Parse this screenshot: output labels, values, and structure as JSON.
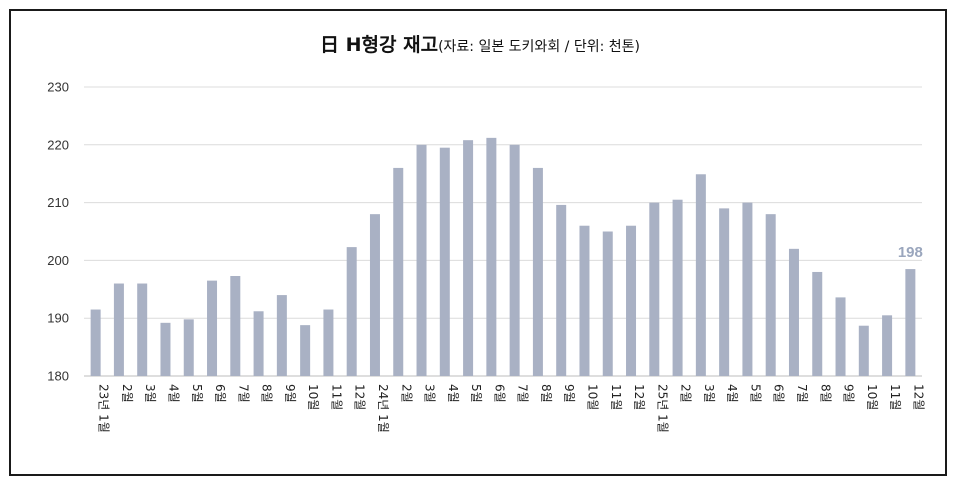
{
  "chart_data": {
    "type": "bar",
    "title": "日 H형강 재고",
    "subtitle": "(자료: 일본 도키와회 / 단위: 천톤)",
    "xlabel": "",
    "ylabel": "",
    "ylim": [
      180,
      230
    ],
    "yticks": [
      "180",
      "190",
      "200",
      "210",
      "220",
      "230"
    ],
    "grid": true,
    "bar_color": "#a9b1c4",
    "categories": [
      "23년 1월",
      "2월",
      "3월",
      "4월",
      "5월",
      "6월",
      "7월",
      "8월",
      "9월",
      "10월",
      "11월",
      "12월",
      "24년 1월",
      "2월",
      "3월",
      "4월",
      "5월",
      "6월",
      "7월",
      "8월",
      "9월",
      "10월",
      "11월",
      "12월",
      "25년 1월",
      "2월",
      "3월",
      "4월",
      "5월",
      "6월",
      "7월",
      "8월",
      "9월",
      "10월",
      "11월",
      "12월"
    ],
    "values": [
      191.5,
      196,
      196,
      189.2,
      189.8,
      196.5,
      197.3,
      191.2,
      194,
      188.8,
      191.5,
      202.3,
      208,
      216,
      220,
      219.5,
      220.8,
      221.2,
      220,
      216,
      209.6,
      206,
      205,
      206,
      210,
      210.5,
      214.9,
      209,
      210,
      208,
      202,
      198,
      193.6,
      188.7,
      190.5,
      198.5
    ],
    "data_labels": [
      {
        "index": 35,
        "text": "198"
      }
    ]
  }
}
